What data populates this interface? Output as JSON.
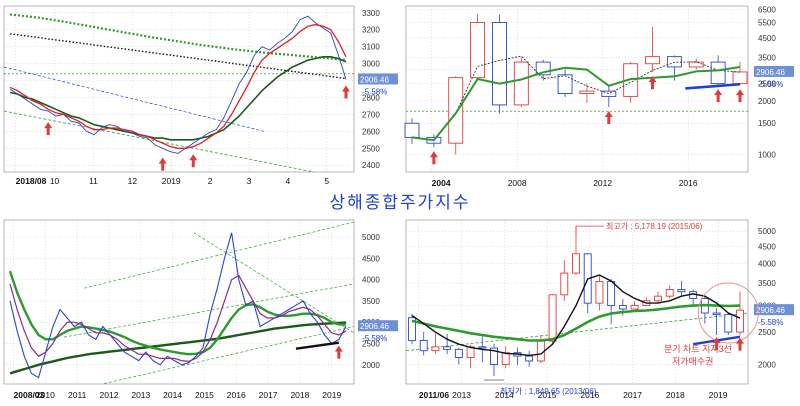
{
  "title": "상해종합주가지수",
  "colors": {
    "price_up": "#e23b3b",
    "price_down": "#2a45c9",
    "ma_red": "#e02020",
    "ma_green": "#2e9a2e",
    "ma_dark": "#1a5a1a",
    "ma_black": "#111111",
    "trend_blue": "#1d3fd6",
    "trend_green": "#2fa32f",
    "grid": "#c8c8c8",
    "annotation_red": "#e23b3b",
    "last_badge_bg": "#6f8fd6"
  },
  "chart_data": [
    {
      "id": "daily",
      "type": "line",
      "title": "",
      "x_ticks": [
        "2018/08",
        "10",
        "11",
        "12",
        "2019",
        "2",
        "3",
        "4",
        "5"
      ],
      "y_ticks": [
        2400,
        2500,
        2600,
        2700,
        2800,
        2900,
        3000,
        3100,
        3200,
        3300
      ],
      "ylim": [
        2360,
        3340
      ],
      "last_value": "2906.46",
      "last_change": "-5.58%",
      "series": [
        {
          "name": "price",
          "values": [
            2850,
            2820,
            2790,
            2760,
            2730,
            2720,
            2690,
            2700,
            2660,
            2650,
            2600,
            2580,
            2620,
            2640,
            2630,
            2600,
            2590,
            2570,
            2560,
            2520,
            2500,
            2480,
            2470,
            2500,
            2530,
            2560,
            2590,
            2610,
            2680,
            2780,
            2880,
            2950,
            3050,
            3100,
            3080,
            3120,
            3150,
            3190,
            3260,
            3280,
            3240,
            3210,
            3180,
            3050,
            2906
          ]
        },
        {
          "name": "ma_short",
          "values": [
            2860,
            2840,
            2810,
            2780,
            2760,
            2730,
            2710,
            2700,
            2680,
            2660,
            2630,
            2610,
            2610,
            2620,
            2620,
            2610,
            2600,
            2580,
            2570,
            2550,
            2530,
            2510,
            2500,
            2500,
            2510,
            2530,
            2560,
            2590,
            2630,
            2700,
            2780,
            2860,
            2950,
            3020,
            3060,
            3090,
            3120,
            3150,
            3190,
            3220,
            3230,
            3220,
            3200,
            3130,
            3040
          ]
        },
        {
          "name": "ma_mid",
          "values": [
            2830,
            2820,
            2800,
            2790,
            2770,
            2750,
            2730,
            2710,
            2690,
            2680,
            2660,
            2640,
            2630,
            2620,
            2610,
            2600,
            2590,
            2580,
            2570,
            2560,
            2560,
            2550,
            2550,
            2550,
            2550,
            2560,
            2570,
            2590,
            2610,
            2650,
            2690,
            2740,
            2790,
            2840,
            2880,
            2920,
            2950,
            2980,
            3000,
            3020,
            3030,
            3040,
            3040,
            3030,
            3010
          ]
        },
        {
          "name": "ma_long_dotted_green",
          "values": [
            3290,
            3285,
            3280,
            3275,
            3270,
            3262,
            3255,
            3248,
            3240,
            3232,
            3224,
            3216,
            3208,
            3200,
            3192,
            3184,
            3176,
            3168,
            3160,
            3152,
            3145,
            3138,
            3131,
            3124,
            3117,
            3110,
            3104,
            3098,
            3092,
            3086,
            3081,
            3076,
            3071,
            3066,
            3062,
            3058,
            3054,
            3050,
            3046,
            3042,
            3038,
            3034,
            3030,
            3026,
            3022
          ]
        },
        {
          "name": "ma_long_dotted_black",
          "values": [
            3175,
            3170,
            3164,
            3158,
            3152,
            3146,
            3140,
            3134,
            3128,
            3122,
            3116,
            3110,
            3104,
            3098,
            3092,
            3086,
            3080,
            3074,
            3068,
            3062,
            3056,
            3050,
            3044,
            3038,
            3032,
            3026,
            3020,
            3014,
            3008,
            3002,
            2996,
            2990,
            2984,
            2978,
            2972,
            2966,
            2960,
            2954,
            2948,
            2942,
            2936,
            2930,
            2924,
            2918,
            2912
          ]
        }
      ],
      "hline": 2940,
      "arrows": [
        5,
        20,
        24,
        44
      ]
    },
    {
      "id": "yearly",
      "type": "bar",
      "title": "",
      "x_ticks": [
        "2004",
        "2008",
        "2012",
        "2016"
      ],
      "y_ticks": [
        1000,
        1500,
        2000,
        2500,
        3000,
        3500,
        4500,
        5500,
        6500
      ],
      "ylim": [
        800,
        6800
      ],
      "last_value": "2906.46",
      "last_change": "-5.58%",
      "candles": [
        {
          "o": 1500,
          "c": 1250,
          "h": 1600,
          "l": 1150
        },
        {
          "o": 1250,
          "c": 1160,
          "h": 1300,
          "l": 1100
        },
        {
          "o": 1160,
          "c": 2700,
          "h": 2750,
          "l": 1000
        },
        {
          "o": 2700,
          "c": 5500,
          "h": 6100,
          "l": 2600
        },
        {
          "o": 5500,
          "c": 1900,
          "h": 6100,
          "l": 1700
        },
        {
          "o": 1900,
          "c": 3300,
          "h": 3500,
          "l": 1850
        },
        {
          "o": 3300,
          "c": 2800,
          "h": 3400,
          "l": 2600
        },
        {
          "o": 2800,
          "c": 2200,
          "h": 3000,
          "l": 2100
        },
        {
          "o": 2200,
          "c": 2270,
          "h": 2500,
          "l": 1950
        },
        {
          "o": 2270,
          "c": 2120,
          "h": 2450,
          "l": 1850
        },
        {
          "o": 2120,
          "c": 3230,
          "h": 3300,
          "l": 1950
        },
        {
          "o": 3230,
          "c": 3540,
          "h": 5200,
          "l": 2900
        },
        {
          "o": 3540,
          "c": 3100,
          "h": 3600,
          "l": 2600
        },
        {
          "o": 3100,
          "c": 3300,
          "h": 3450,
          "l": 3000
        },
        {
          "o": 3300,
          "c": 2500,
          "h": 3600,
          "l": 2450
        },
        {
          "o": 2500,
          "c": 2906,
          "h": 3300,
          "l": 2450
        }
      ],
      "hline": 1750,
      "arrows": [
        1,
        9,
        11,
        14,
        15
      ]
    },
    {
      "id": "monthly",
      "type": "line",
      "title": "",
      "x_ticks": [
        "2008/03",
        "2010",
        "2011",
        "2012",
        "2013",
        "2014",
        "2015",
        "2016",
        "2017",
        "2018",
        "2019"
      ],
      "y_ticks": [
        2000,
        2500,
        3000,
        3500,
        4000,
        4500,
        5000
      ],
      "ylim": [
        1550,
        5400
      ],
      "last_value": "2906.46",
      "last_change": "-5.58%",
      "series": [
        {
          "name": "price",
          "values": [
            3500,
            2800,
            2200,
            1800,
            1700,
            2300,
            2900,
            3300,
            3100,
            2900,
            3000,
            2700,
            2600,
            2900,
            2700,
            2500,
            2300,
            2200,
            2100,
            2300,
            2100,
            2000,
            2200,
            2100,
            2000,
            2050,
            2200,
            2400,
            3200,
            3800,
            4500,
            5100,
            4000,
            3400,
            3500,
            2900,
            3000,
            3100,
            3200,
            3300,
            3400,
            3500,
            3200,
            3000,
            2700,
            2500,
            2600,
            2906
          ]
        },
        {
          "name": "ma_purple",
          "values": [
            3900,
            3300,
            2800,
            2400,
            2200,
            2300,
            2500,
            2800,
            3000,
            3000,
            2950,
            2850,
            2750,
            2750,
            2700,
            2600,
            2450,
            2350,
            2250,
            2250,
            2200,
            2150,
            2150,
            2150,
            2100,
            2080,
            2150,
            2300,
            2600,
            3000,
            3500,
            4000,
            4100,
            3800,
            3500,
            3200,
            3100,
            3100,
            3150,
            3250,
            3300,
            3350,
            3300,
            3150,
            2950,
            2750,
            2700,
            2800
          ]
        },
        {
          "name": "ma_green",
          "values": [
            4200,
            3700,
            3300,
            2950,
            2700,
            2600,
            2600,
            2700,
            2800,
            2850,
            2900,
            2880,
            2850,
            2820,
            2780,
            2720,
            2650,
            2570,
            2500,
            2450,
            2400,
            2360,
            2330,
            2300,
            2270,
            2250,
            2260,
            2300,
            2400,
            2600,
            2850,
            3100,
            3300,
            3400,
            3420,
            3350,
            3250,
            3180,
            3150,
            3150,
            3170,
            3200,
            3200,
            3170,
            3100,
            3000,
            2950,
            2950
          ]
        },
        {
          "name": "ma_dark",
          "values": [
            1800,
            1850,
            1900,
            1950,
            2000,
            2040,
            2080,
            2120,
            2160,
            2190,
            2220,
            2250,
            2270,
            2290,
            2310,
            2330,
            2350,
            2370,
            2390,
            2410,
            2430,
            2450,
            2470,
            2490,
            2510,
            2530,
            2550,
            2570,
            2590,
            2610,
            2640,
            2670,
            2700,
            2730,
            2760,
            2790,
            2820,
            2850,
            2870,
            2890,
            2910,
            2930,
            2945,
            2955,
            2965,
            2975,
            2985,
            2995
          ]
        }
      ],
      "arrows": [
        46
      ]
    },
    {
      "id": "quarterly",
      "type": "bar",
      "title": "",
      "x_ticks": [
        "2011/06",
        "2013",
        "2014",
        "2015",
        "2016",
        "2017",
        "2018",
        "2019"
      ],
      "y_ticks": [
        2000,
        2500,
        3000,
        3500,
        4000,
        4500,
        5000
      ],
      "ylim": [
        1750,
        5400
      ],
      "last_value": "2906.46",
      "last_change": "-5.58%",
      "annotations": {
        "high_label": "최고가 : 5,178.19 (2015/06)",
        "low_label": "최저가 : 1,849.65 (2013/06)",
        "note_line1": "분기 차트 지지3선",
        "note_line2": "저가매수권"
      },
      "candles": [
        {
          "o": 2760,
          "c": 2360,
          "h": 2830,
          "l": 2300
        },
        {
          "o": 2360,
          "c": 2200,
          "h": 2500,
          "l": 2130
        },
        {
          "o": 2200,
          "c": 2260,
          "h": 2480,
          "l": 2150
        },
        {
          "o": 2260,
          "c": 2220,
          "h": 2470,
          "l": 2150
        },
        {
          "o": 2220,
          "c": 2100,
          "h": 2250,
          "l": 2000
        },
        {
          "o": 2100,
          "c": 2260,
          "h": 2290,
          "l": 1950
        },
        {
          "o": 2260,
          "c": 2240,
          "h": 2440,
          "l": 2030
        },
        {
          "o": 2240,
          "c": 2000,
          "h": 2310,
          "l": 1849
        },
        {
          "o": 2000,
          "c": 2170,
          "h": 2270,
          "l": 1950
        },
        {
          "o": 2170,
          "c": 2120,
          "h": 2250,
          "l": 1990
        },
        {
          "o": 2120,
          "c": 2050,
          "h": 2200,
          "l": 1970
        },
        {
          "o": 2050,
          "c": 2350,
          "h": 2450,
          "l": 2020
        },
        {
          "o": 2350,
          "c": 3230,
          "h": 3250,
          "l": 2300
        },
        {
          "o": 3230,
          "c": 3750,
          "h": 4100,
          "l": 3100
        },
        {
          "o": 3750,
          "c": 4280,
          "h": 5178,
          "l": 3700
        },
        {
          "o": 4280,
          "c": 3050,
          "h": 4300,
          "l": 2850
        },
        {
          "o": 3050,
          "c": 3540,
          "h": 3680,
          "l": 2900
        },
        {
          "o": 3540,
          "c": 3000,
          "h": 3600,
          "l": 2640
        },
        {
          "o": 3000,
          "c": 2930,
          "h": 3140,
          "l": 2800
        },
        {
          "o": 2930,
          "c": 3000,
          "h": 3100,
          "l": 2950
        },
        {
          "o": 3000,
          "c": 3100,
          "h": 3180,
          "l": 2990
        },
        {
          "o": 3100,
          "c": 3200,
          "h": 3300,
          "l": 3050
        },
        {
          "o": 3200,
          "c": 3350,
          "h": 3450,
          "l": 3150
        },
        {
          "o": 3350,
          "c": 3300,
          "h": 3550,
          "l": 3200
        },
        {
          "o": 3300,
          "c": 3150,
          "h": 3350,
          "l": 3000
        },
        {
          "o": 3150,
          "c": 2850,
          "h": 3200,
          "l": 2650
        },
        {
          "o": 2850,
          "c": 2820,
          "h": 2950,
          "l": 2450
        },
        {
          "o": 2820,
          "c": 2500,
          "h": 2850,
          "l": 2450
        },
        {
          "o": 2500,
          "c": 2906,
          "h": 3300,
          "l": 2440
        }
      ],
      "ma_black": [
        2800,
        2650,
        2500,
        2380,
        2300,
        2250,
        2220,
        2200,
        2160,
        2150,
        2130,
        2150,
        2300,
        2600,
        3000,
        3600,
        3700,
        3550,
        3300,
        3150,
        3050,
        3050,
        3100,
        3200,
        3250,
        3200,
        3050,
        2850,
        2750
      ],
      "ma_green": [
        2700,
        2650,
        2600,
        2560,
        2520,
        2480,
        2450,
        2420,
        2400,
        2380,
        2360,
        2360,
        2380,
        2450,
        2560,
        2680,
        2780,
        2840,
        2870,
        2890,
        2900,
        2920,
        2950,
        2980,
        3000,
        3010,
        3000,
        2990,
        3000
      ],
      "arrows": [
        26,
        28
      ]
    }
  ]
}
